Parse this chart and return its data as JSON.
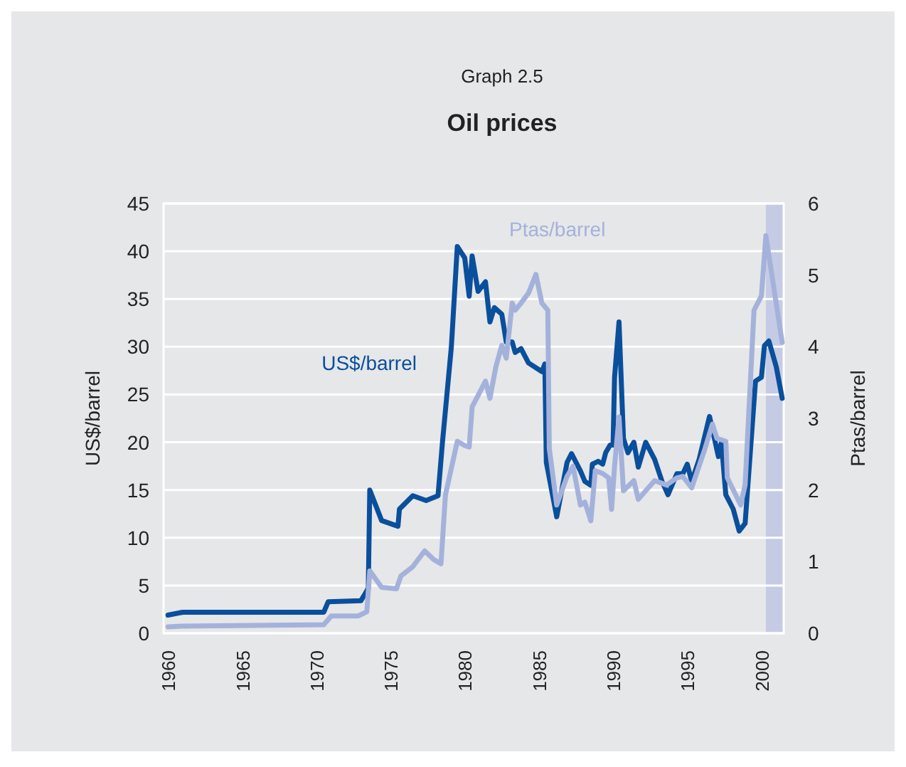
{
  "chart_data": {
    "type": "line",
    "subtitle": "Graph 2.5",
    "title": "Oil prices",
    "ylabel": "US$/barrel",
    "y2label": "Ptas/barrel",
    "xlim": [
      1959.7,
      2001.5
    ],
    "xticks": [
      1960,
      1965,
      1970,
      1975,
      1980,
      1985,
      1990,
      1995,
      2000
    ],
    "ylim": [
      0,
      45
    ],
    "yticks": [
      0,
      5,
      10,
      15,
      20,
      25,
      30,
      35,
      40,
      45
    ],
    "y2lim": [
      0,
      6
    ],
    "y2ticks": [
      0,
      1,
      2,
      3,
      4,
      5,
      6
    ],
    "grid": "y",
    "line_style": "solid",
    "marker": "none",
    "bands": [
      {
        "axis": "x",
        "from": 2000.3,
        "to": 2001.5,
        "color": "#c5cbe5"
      }
    ],
    "series": [
      {
        "name": "US$/barrel",
        "color": "#0a4f9c",
        "x": [
          1960,
          1961,
          1970.5,
          1970.8,
          1973,
          1973.5,
          1973.6,
          1974.4,
          1975.5,
          1975.6,
          1976.5,
          1977.4,
          1978.2,
          1978.5,
          1979.1,
          1979.5,
          1980,
          1980.3,
          1980.5,
          1980.9,
          1981.4,
          1981.7,
          1982,
          1982.5,
          1982.8,
          1983.2,
          1983.4,
          1983.8,
          1984.3,
          1985.2,
          1985.4,
          1985.5,
          1986.2,
          1986.9,
          1987.2,
          1987.8,
          1988.1,
          1988.5,
          1988.6,
          1989,
          1989.3,
          1989.5,
          1989.8,
          1990,
          1990.1,
          1990.4,
          1990.7,
          1991,
          1991.4,
          1991.7,
          1992.2,
          1992.8,
          1993.3,
          1993.7,
          1994.3,
          1994.7,
          1995,
          1995.3,
          1995.8,
          1996.5,
          1997.1,
          1997.3,
          1997.6,
          1998.1,
          1998.5,
          1998.9,
          1999.6,
          2000,
          2000.2,
          2000.5,
          2001,
          2001.4
        ],
        "values": [
          1.9,
          2.2,
          2.2,
          3.3,
          3.4,
          4.7,
          15,
          11.8,
          11.2,
          13,
          14.4,
          13.9,
          14.4,
          20,
          30,
          40.5,
          39.3,
          35.3,
          39.5,
          35.8,
          36.8,
          32.6,
          34.1,
          33.4,
          30.5,
          30.5,
          29.4,
          29.8,
          28.3,
          27.4,
          28.2,
          17.9,
          12.2,
          17.9,
          18.8,
          17,
          15.9,
          15.5,
          17.7,
          18,
          17.7,
          18.9,
          19.7,
          19.7,
          26.8,
          32.6,
          20.4,
          18.9,
          20,
          17.4,
          20,
          18.2,
          15.9,
          14.5,
          16.7,
          16.7,
          17.7,
          15.9,
          18.2,
          22.7,
          18.5,
          20,
          14.5,
          13,
          10.7,
          11.5,
          26.4,
          26.8,
          30.1,
          30.6,
          27.9,
          24.6
        ]
      },
      {
        "name": "Ptas/barrel",
        "color": "#a4b2db",
        "axis": "y2",
        "x": [
          1960,
          1961,
          1970.5,
          1971,
          1972.8,
          1973.4,
          1973.6,
          1974.4,
          1975.4,
          1975.7,
          1976.5,
          1977.3,
          1977.9,
          1978.4,
          1978.7,
          1979.5,
          1980,
          1980.3,
          1980.5,
          1980.9,
          1981.4,
          1981.7,
          1982.1,
          1982.5,
          1982.8,
          1983.2,
          1983.4,
          1983.8,
          1984.3,
          1984.8,
          1985.2,
          1985.6,
          1985.7,
          1986.2,
          1986.9,
          1987.3,
          1987.8,
          1988.1,
          1988.5,
          1988.8,
          1989.3,
          1989.7,
          1989.9,
          1990.1,
          1990.4,
          1990.7,
          1991.4,
          1991.7,
          1992.2,
          1992.8,
          1993.6,
          1994.3,
          1994.7,
          1995.3,
          1996.2,
          1996.7,
          1997,
          1997.6,
          1997.7,
          1998.6,
          1998.9,
          1999.5,
          2000,
          2000.3,
          2001.4
        ],
        "values": [
          0.09,
          0.1,
          0.12,
          0.24,
          0.24,
          0.3,
          0.87,
          0.64,
          0.62,
          0.8,
          0.93,
          1.15,
          1.03,
          0.97,
          1.93,
          2.68,
          2.62,
          2.6,
          3.16,
          3.32,
          3.52,
          3.28,
          3.72,
          4.02,
          3.84,
          4.61,
          4.51,
          4.61,
          4.75,
          5.01,
          4.61,
          4.51,
          2.58,
          1.79,
          2.19,
          2.33,
          1.79,
          1.83,
          1.57,
          2.27,
          2.23,
          2.17,
          1.73,
          2.33,
          3.02,
          1.99,
          2.13,
          1.87,
          1.99,
          2.13,
          2.07,
          2.17,
          2.19,
          2.03,
          2.58,
          2.92,
          2.72,
          2.68,
          2.17,
          1.79,
          2.07,
          4.51,
          4.71,
          5.55,
          4.06
        ]
      }
    ]
  }
}
